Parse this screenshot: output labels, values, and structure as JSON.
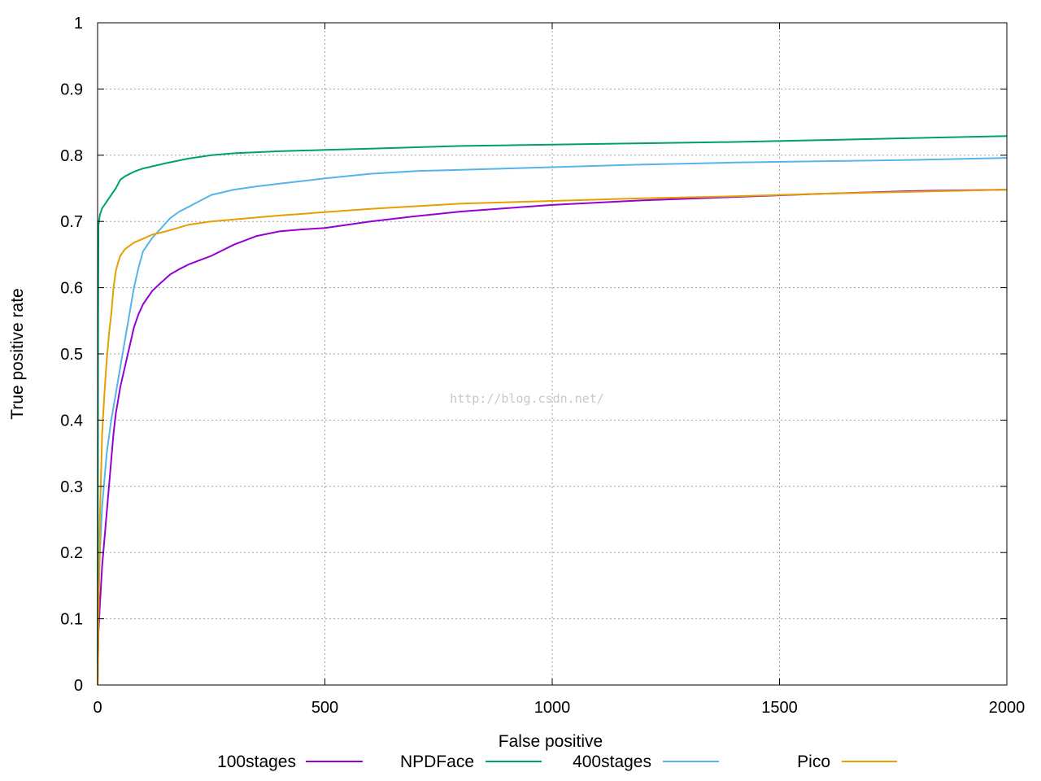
{
  "watermark": "http://blog.csdn.net/",
  "chart_data": {
    "type": "line",
    "xlabel": "False positive",
    "ylabel": "True positive rate",
    "xlim": [
      0,
      2000
    ],
    "ylim": [
      0,
      1
    ],
    "x_ticks": [
      0,
      500,
      1000,
      1500,
      2000
    ],
    "y_ticks": [
      0,
      0.1,
      0.2,
      0.3,
      0.4,
      0.5,
      0.6,
      0.7,
      0.8,
      0.9,
      1
    ],
    "grid": true,
    "legend_position": "bottom",
    "series": [
      {
        "name": "100stages",
        "color": "#9400d3",
        "x": [
          0,
          2,
          5,
          10,
          15,
          20,
          25,
          30,
          35,
          40,
          45,
          50,
          60,
          70,
          80,
          90,
          100,
          120,
          140,
          160,
          180,
          200,
          250,
          300,
          350,
          400,
          450,
          500,
          600,
          700,
          800,
          900,
          1000,
          1200,
          1400,
          1600,
          1800,
          2000
        ],
        "y": [
          0,
          0.08,
          0.12,
          0.18,
          0.22,
          0.26,
          0.3,
          0.34,
          0.38,
          0.41,
          0.43,
          0.45,
          0.48,
          0.51,
          0.54,
          0.56,
          0.575,
          0.595,
          0.608,
          0.62,
          0.628,
          0.635,
          0.648,
          0.665,
          0.678,
          0.685,
          0.688,
          0.69,
          0.7,
          0.708,
          0.715,
          0.72,
          0.725,
          0.732,
          0.737,
          0.742,
          0.746,
          0.748
        ]
      },
      {
        "name": "NPDFace",
        "color": "#009e73",
        "x": [
          0,
          1,
          2,
          5,
          10,
          15,
          20,
          30,
          40,
          50,
          60,
          80,
          100,
          150,
          200,
          250,
          300,
          400,
          500,
          600,
          700,
          800,
          900,
          1000,
          1200,
          1400,
          1600,
          1800,
          2000
        ],
        "y": [
          0,
          0.54,
          0.695,
          0.71,
          0.72,
          0.725,
          0.73,
          0.74,
          0.75,
          0.763,
          0.768,
          0.775,
          0.78,
          0.788,
          0.795,
          0.8,
          0.803,
          0.806,
          0.808,
          0.81,
          0.812,
          0.814,
          0.815,
          0.816,
          0.818,
          0.82,
          0.823,
          0.826,
          0.829
        ]
      },
      {
        "name": "400stages",
        "color": "#56b4e9",
        "x": [
          0,
          2,
          5,
          10,
          15,
          20,
          30,
          40,
          50,
          60,
          70,
          80,
          90,
          100,
          120,
          140,
          160,
          180,
          200,
          250,
          300,
          350,
          400,
          500,
          600,
          700,
          800,
          900,
          1000,
          1200,
          1400,
          1600,
          1800,
          2000
        ],
        "y": [
          0,
          0.12,
          0.2,
          0.27,
          0.31,
          0.35,
          0.4,
          0.44,
          0.48,
          0.52,
          0.56,
          0.6,
          0.63,
          0.655,
          0.675,
          0.69,
          0.705,
          0.715,
          0.722,
          0.74,
          0.748,
          0.753,
          0.757,
          0.765,
          0.772,
          0.776,
          0.778,
          0.78,
          0.782,
          0.786,
          0.789,
          0.791,
          0.793,
          0.796
        ]
      },
      {
        "name": "Pico",
        "color": "#e69f00",
        "x": [
          0,
          2,
          5,
          8,
          10,
          15,
          20,
          25,
          30,
          35,
          40,
          45,
          50,
          60,
          70,
          80,
          100,
          120,
          150,
          200,
          250,
          300,
          400,
          500,
          600,
          700,
          800,
          1000,
          1200,
          1400,
          1600,
          1800,
          2000
        ],
        "y": [
          0,
          0.1,
          0.25,
          0.33,
          0.38,
          0.44,
          0.49,
          0.53,
          0.56,
          0.6,
          0.625,
          0.638,
          0.648,
          0.658,
          0.663,
          0.668,
          0.674,
          0.68,
          0.685,
          0.695,
          0.7,
          0.703,
          0.709,
          0.714,
          0.719,
          0.723,
          0.727,
          0.731,
          0.735,
          0.738,
          0.742,
          0.745,
          0.748
        ]
      }
    ]
  }
}
